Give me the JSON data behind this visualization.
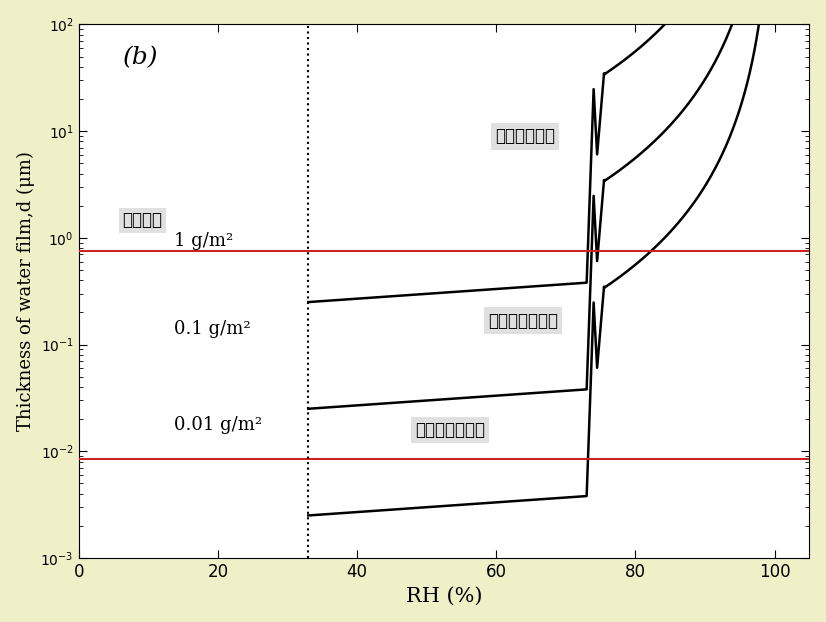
{
  "title": "(b)",
  "xlabel": "RH (%)",
  "ylabel": "Thickness of water film,d (μm)",
  "xlim": [
    0,
    105
  ],
  "ylim_log": [
    -3,
    2
  ],
  "red_hlines": [
    0.75,
    0.0085
  ],
  "vline_x": 33,
  "label_futyaku": "付着塩量",
  "label_nure": "濡れ大気腕食",
  "label_shimeri": "しめり大気腕食",
  "label_kawaki": "かわき大気腕食",
  "label_1": "1 g/m²",
  "label_01": "0.1 g/m²",
  "label_001": "0.01 g/m²",
  "background_outer": "#f0f0c8",
  "background_inner": "#ffffff",
  "line_color": "#000000",
  "red_color": "#cc2222",
  "annotation_box_color": "#e0e0e0"
}
